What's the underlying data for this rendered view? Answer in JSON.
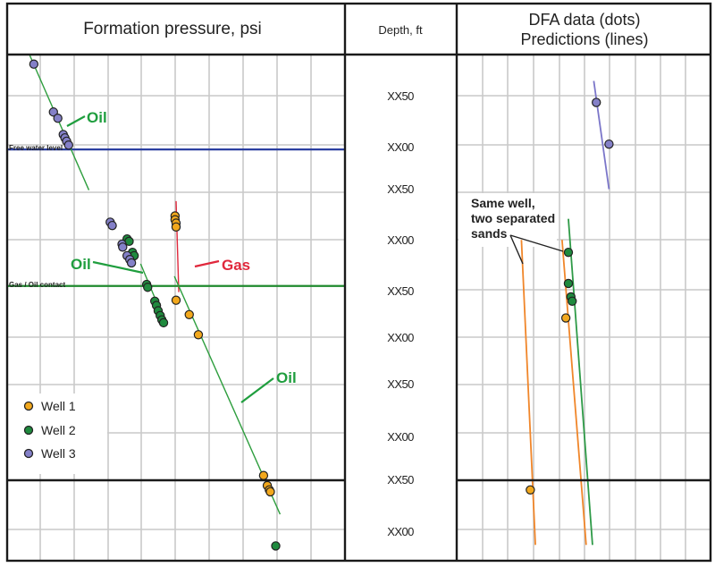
{
  "chart_data": [
    {
      "type": "scatter",
      "title": "Formation pressure, psi",
      "xlabel": "Formation pressure, psi",
      "ylabel": "Depth, ft",
      "grid": true,
      "x_range": [
        0,
        10
      ],
      "y_range": [
        0,
        10
      ],
      "legend_position": "bottom-left",
      "contacts": [
        {
          "name": "free-water-level",
          "label": "Free water level",
          "depth": 2.0,
          "color": "#2b3fa0"
        },
        {
          "name": "gas-oil-contact",
          "label": "Gas / Oil contact",
          "depth": 4.85,
          "color": "#1f8a2e"
        }
      ],
      "series": [
        {
          "name": "Well 1",
          "color": "#f2a81d",
          "points": [
            [
              4.97,
              3.37
            ],
            [
              4.97,
              3.45
            ],
            [
              5.0,
              3.52
            ],
            [
              5.0,
              3.6
            ],
            [
              5.0,
              5.13
            ],
            [
              5.39,
              5.43
            ],
            [
              5.66,
              5.85
            ],
            [
              7.59,
              8.79
            ],
            [
              7.7,
              9.0
            ],
            [
              7.76,
              9.09
            ],
            [
              7.79,
              9.13
            ]
          ]
        },
        {
          "name": "Well 2",
          "color": "#1f8a3e",
          "points": [
            [
              3.55,
              3.85
            ],
            [
              3.61,
              3.9
            ],
            [
              3.71,
              4.13
            ],
            [
              3.76,
              4.2
            ],
            [
              4.13,
              4.8
            ],
            [
              4.16,
              4.86
            ],
            [
              4.37,
              5.15
            ],
            [
              4.42,
              5.24
            ],
            [
              4.47,
              5.35
            ],
            [
              4.53,
              5.45
            ],
            [
              4.58,
              5.54
            ],
            [
              4.63,
              5.6
            ],
            [
              7.95,
              10.26
            ]
          ]
        },
        {
          "name": "Well 3",
          "color": "#8480c8",
          "points": [
            [
              0.79,
              0.2
            ],
            [
              1.37,
              1.2
            ],
            [
              1.5,
              1.33
            ],
            [
              1.66,
              1.67
            ],
            [
              1.71,
              1.74
            ],
            [
              1.76,
              1.81
            ],
            [
              1.82,
              1.89
            ],
            [
              3.05,
              3.5
            ],
            [
              3.11,
              3.57
            ],
            [
              3.4,
              3.96
            ],
            [
              3.42,
              4.02
            ],
            [
              3.55,
              4.2
            ],
            [
              3.63,
              4.28
            ],
            [
              3.68,
              4.35
            ]
          ]
        }
      ],
      "lines": [
        {
          "name": "oil-gradient-upper",
          "label": "Oil",
          "color": "#2e9e3e",
          "points": [
            [
              0.66,
              0.0
            ],
            [
              2.42,
              2.83
            ]
          ]
        },
        {
          "name": "oil-gradient-middle",
          "label": "Oil",
          "color": "#2e9e3e",
          "points": [
            [
              3.95,
              4.37
            ],
            [
              4.68,
              5.6
            ]
          ]
        },
        {
          "name": "gas-gradient",
          "label": "Gas",
          "color": "#e0283c",
          "points": [
            [
              5.0,
              3.06
            ],
            [
              5.08,
              4.96
            ]
          ]
        },
        {
          "name": "oil-gradient-lower",
          "label": "Oil",
          "color": "#2e9e3e",
          "points": [
            [
              4.95,
              4.63
            ],
            [
              8.08,
              9.6
            ]
          ]
        }
      ],
      "annotations": [
        {
          "text": "Oil",
          "color": "#1f9e3e"
        },
        {
          "text": "Oil",
          "color": "#1f9e3e"
        },
        {
          "text": "Gas",
          "color": "#e0283c"
        },
        {
          "text": "Oil",
          "color": "#1f9e3e"
        }
      ]
    },
    {
      "type": "scatter",
      "title": "DFA data (dots) Predictions (lines)",
      "title_lines": [
        "DFA data (dots)",
        "Predictions (lines)"
      ],
      "ylabel": "Depth, ft",
      "grid": true,
      "x_range": [
        0,
        10
      ],
      "y_range": [
        0,
        10
      ],
      "series": [
        {
          "name": "Well 1",
          "color": "#f2a81d",
          "points": [
            [
              4.3,
              5.5
            ],
            [
              2.9,
              9.09
            ]
          ]
        },
        {
          "name": "Well 2",
          "color": "#1f8a3e",
          "points": [
            [
              4.4,
              4.13
            ],
            [
              4.4,
              4.78
            ],
            [
              4.5,
              5.06
            ],
            [
              4.55,
              5.15
            ]
          ]
        },
        {
          "name": "Well 3",
          "color": "#8480c8",
          "points": [
            [
              5.5,
              1.0
            ],
            [
              6.0,
              1.87
            ]
          ]
        }
      ],
      "lines": [
        {
          "name": "well-3-prediction",
          "color": "#7b76c9",
          "points": [
            [
              5.4,
              0.55
            ],
            [
              6.0,
              2.81
            ]
          ]
        },
        {
          "name": "well-1-sand-a-prediction",
          "color": "#f0862a",
          "points": [
            [
              2.55,
              3.87
            ],
            [
              3.1,
              10.24
            ]
          ]
        },
        {
          "name": "well-1-sand-b-prediction",
          "color": "#f0862a",
          "points": [
            [
              4.15,
              3.87
            ],
            [
              5.1,
              10.24
            ]
          ]
        },
        {
          "name": "well-2-prediction",
          "color": "#2e9a47",
          "points": [
            [
              4.4,
              3.43
            ],
            [
              5.35,
              10.24
            ]
          ]
        }
      ],
      "annotation": {
        "lines": [
          "Same well,",
          "two separated",
          "sands"
        ]
      }
    }
  ],
  "depth_track": {
    "header": "Depth, ft",
    "labels": [
      "XX50",
      "XX00",
      "XX50",
      "XX00",
      "XX50",
      "XX00",
      "XX50",
      "XX00",
      "XX50",
      "XX00"
    ]
  },
  "legend": {
    "items": [
      {
        "label": "Well 1",
        "color": "#f2a81d"
      },
      {
        "label": "Well 2",
        "color": "#1f8a3e"
      },
      {
        "label": "Well 3",
        "color": "#8480c8"
      }
    ]
  }
}
